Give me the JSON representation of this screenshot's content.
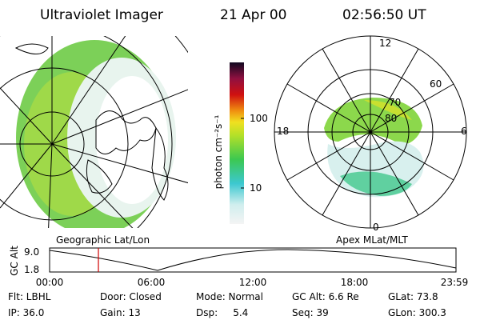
{
  "header": {
    "title": "Ultraviolet Imager",
    "date": "21 Apr 00",
    "time": "02:56:50 UT"
  },
  "colorbar": {
    "label": "photon cm⁻²s⁻¹",
    "ticks": [
      "100",
      "10"
    ]
  },
  "polar_plot": {
    "mlt_labels": [
      "12",
      "6",
      "0",
      "18"
    ],
    "mlat_labels": [
      "80",
      "70",
      "60"
    ]
  },
  "altitude_plot": {
    "y_label": "GC Alt",
    "y_ticks": [
      "9.0",
      "1.8"
    ],
    "left_label": "Geographic Lat/Lon",
    "right_label": "Apex MLat/MLT",
    "x_ticks": [
      "00:00",
      "06:00",
      "12:00",
      "18:00",
      "23:59"
    ]
  },
  "info": [
    [
      "Flt: LBHL",
      "Door: Closed",
      "Mode: Normal",
      "GC Alt: 6.6 Re",
      "GLat: 73.8"
    ],
    [
      "IP: 36.0",
      "Gain: 13",
      "Dsp:     5.4",
      "Seq: 39",
      "GLon: 300.3"
    ]
  ]
}
